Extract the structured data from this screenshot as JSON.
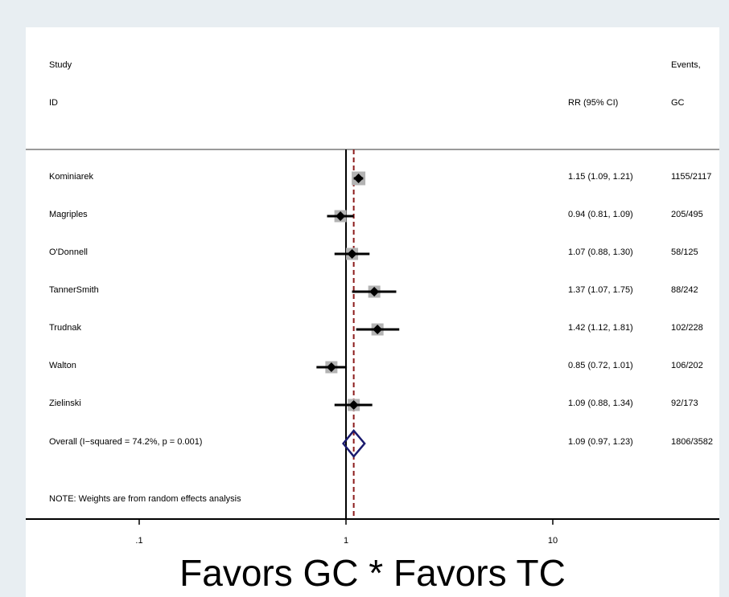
{
  "chart_data": {
    "type": "forest",
    "x_scale": "log",
    "xlim": [
      0.05,
      60
    ],
    "x_ticks": [
      {
        "value": 0.1,
        "label": ".1"
      },
      {
        "value": 1,
        "label": "1"
      },
      {
        "value": 10,
        "label": "10"
      }
    ],
    "headers": {
      "study_line1": "Study",
      "study_line2": "ID",
      "rr": "RR (95% CI)",
      "events_line1": "Events,",
      "events_line2": "GC"
    },
    "studies": [
      {
        "name": "Kominiarek",
        "rr": 1.15,
        "lo": 1.09,
        "hi": 1.21,
        "rr_text": "1.15 (1.09, 1.21)",
        "events": "1155/2117"
      },
      {
        "name": "Magriples",
        "rr": 0.94,
        "lo": 0.81,
        "hi": 1.09,
        "rr_text": "0.94 (0.81, 1.09)",
        "events": "205/495"
      },
      {
        "name": "O'Donnell",
        "rr": 1.07,
        "lo": 0.88,
        "hi": 1.3,
        "rr_text": "1.07 (0.88, 1.30)",
        "events": "58/125"
      },
      {
        "name": "TannerSmith",
        "rr": 1.37,
        "lo": 1.07,
        "hi": 1.75,
        "rr_text": "1.37 (1.07, 1.75)",
        "events": "88/242"
      },
      {
        "name": "Trudnak",
        "rr": 1.42,
        "lo": 1.12,
        "hi": 1.81,
        "rr_text": "1.42 (1.12, 1.81)",
        "events": "102/228"
      },
      {
        "name": "Walton",
        "rr": 0.85,
        "lo": 0.72,
        "hi": 1.01,
        "rr_text": "0.85 (0.72, 1.01)",
        "events": "106/202"
      },
      {
        "name": "Zielinski",
        "rr": 1.09,
        "lo": 0.88,
        "hi": 1.34,
        "rr_text": "1.09 (0.88, 1.34)",
        "events": "92/173"
      }
    ],
    "overall": {
      "label": "Overall  (I−squared = 74.2%, p = 0.001)",
      "rr": 1.09,
      "lo": 0.97,
      "hi": 1.23,
      "rr_text": "1.09 (0.97, 1.23)",
      "events": "1806/3582"
    },
    "note": "NOTE: Weights are from random effects analysis",
    "caption": "Favors GC * Favors TC",
    "colors": {
      "background": "#e8eef2",
      "ci_line": "#000000",
      "weight_box": "#b3b3b3",
      "overall_diamond": "#1a1a6e",
      "overall_line": "#8b1a1a"
    }
  }
}
